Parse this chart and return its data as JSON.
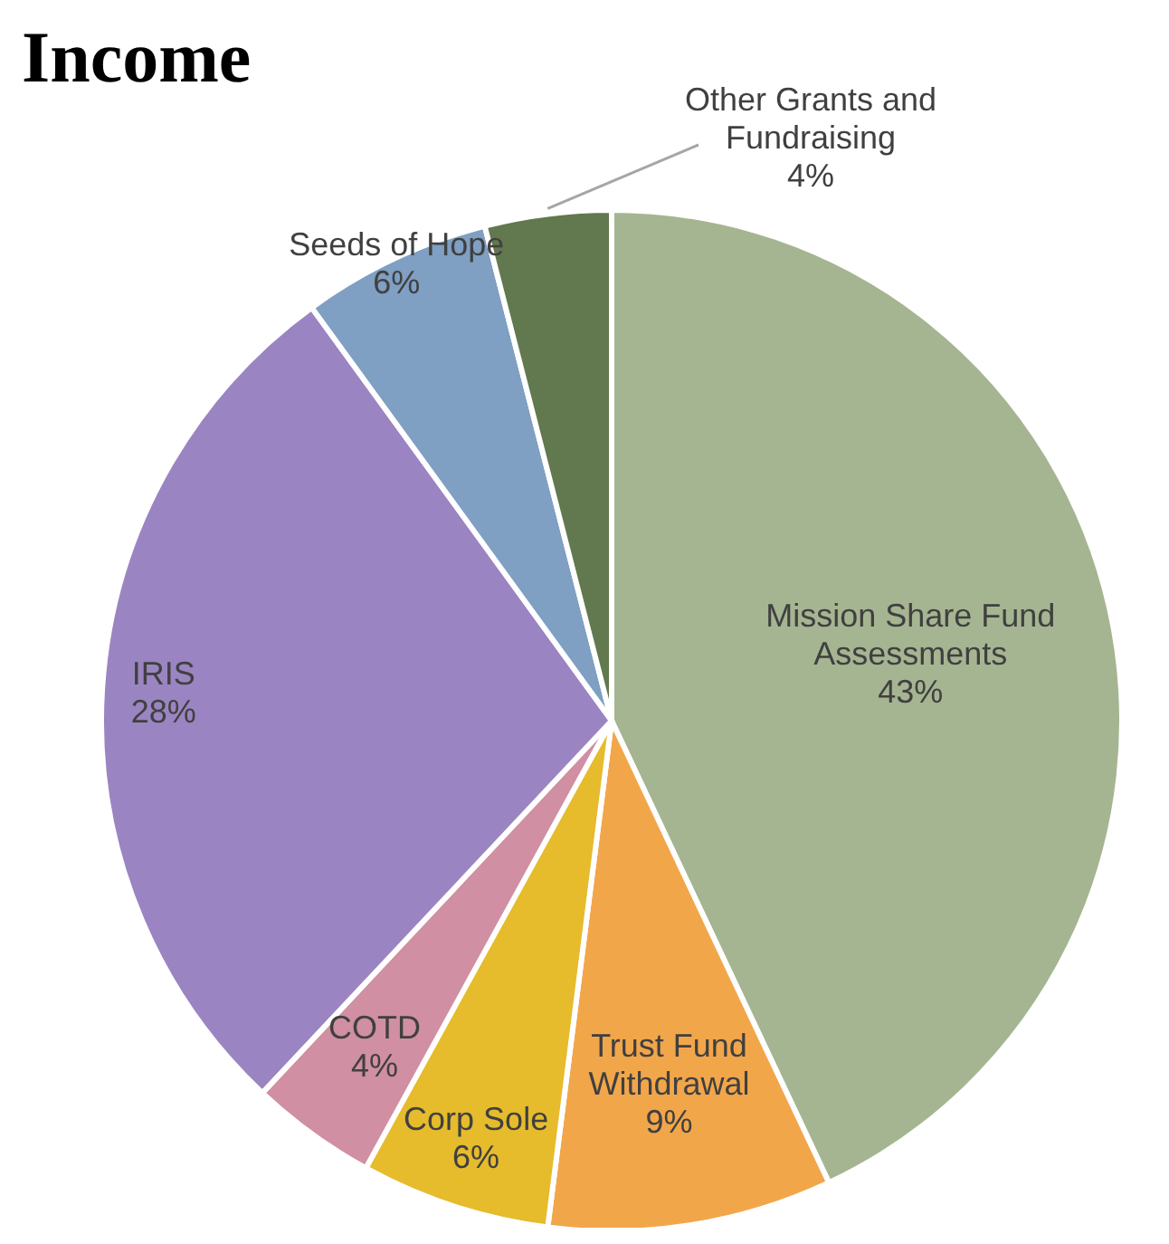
{
  "chart_data": {
    "type": "pie",
    "title": "Income",
    "categories": [
      "Mission Share Fund Assessments",
      "Trust Fund Withdrawal",
      "Corp Sole",
      "COTD",
      "IRIS",
      "Seeds of Hope",
      "Other Grants and Fundraising"
    ],
    "values": [
      43,
      9,
      6,
      4,
      28,
      6,
      4
    ],
    "value_labels": [
      "43%",
      "9%",
      "6%",
      "4%",
      "28%",
      "6%",
      "4%"
    ],
    "colors": [
      "#a5b591",
      "#f2a64a",
      "#e6bb2c",
      "#d08fa2",
      "#9b84c2",
      "#7f9fc3",
      "#62784f"
    ]
  }
}
